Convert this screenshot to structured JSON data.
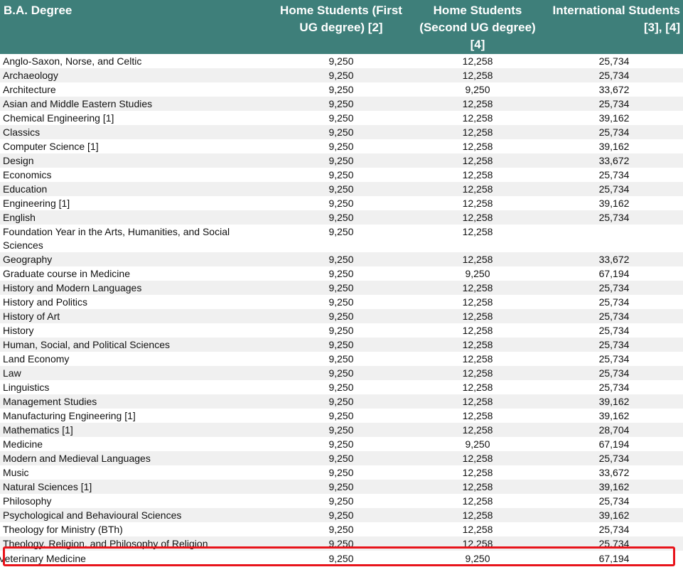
{
  "table": {
    "headers": [
      "B.A. Degree",
      "Home Students (First UG degree) [2]",
      "Home Students (Second UG degree) [4]",
      "International Students [3], [4]"
    ],
    "rows": [
      {
        "name": "Anglo-Saxon, Norse, and Celtic",
        "first": "9,250",
        "second": "12,258",
        "intl": "25,734"
      },
      {
        "name": "Archaeology",
        "first": "9,250",
        "second": "12,258",
        "intl": "25,734"
      },
      {
        "name": "Architecture",
        "first": "9,250",
        "second": "9,250",
        "intl": "33,672"
      },
      {
        "name": "Asian and Middle Eastern Studies",
        "first": "9,250",
        "second": "12,258",
        "intl": "25,734"
      },
      {
        "name": "Chemical Engineering [1]",
        "first": "9,250",
        "second": "12,258",
        "intl": "39,162"
      },
      {
        "name": "Classics",
        "first": "9,250",
        "second": "12,258",
        "intl": "25,734"
      },
      {
        "name": "Computer Science [1]",
        "first": "9,250",
        "second": "12,258",
        "intl": "39,162"
      },
      {
        "name": "Design",
        "first": "9,250",
        "second": "12,258",
        "intl": "33,672"
      },
      {
        "name": "Economics",
        "first": "9,250",
        "second": "12,258",
        "intl": "25,734"
      },
      {
        "name": "Education",
        "first": "9,250",
        "second": "12,258",
        "intl": "25,734"
      },
      {
        "name": "Engineering [1]",
        "first": "9,250",
        "second": "12,258",
        "intl": "39,162"
      },
      {
        "name": "English",
        "first": "9,250",
        "second": "12,258",
        "intl": "25,734"
      },
      {
        "name": "Foundation Year in the Arts, Humanities, and Social Sciences",
        "first": "9,250",
        "second": "12,258",
        "intl": ""
      },
      {
        "name": "Geography",
        "first": "9,250",
        "second": "12,258",
        "intl": "33,672"
      },
      {
        "name": "Graduate course in Medicine",
        "first": "9,250",
        "second": "9,250",
        "intl": "67,194"
      },
      {
        "name": "History and Modern Languages",
        "first": "9,250",
        "second": "12,258",
        "intl": "25,734"
      },
      {
        "name": "History and Politics",
        "first": "9,250",
        "second": "12,258",
        "intl": "25,734"
      },
      {
        "name": "History of Art",
        "first": "9,250",
        "second": "12,258",
        "intl": "25,734"
      },
      {
        "name": "History",
        "first": "9,250",
        "second": "12,258",
        "intl": "25,734"
      },
      {
        "name": "Human, Social, and Political Sciences",
        "first": "9,250",
        "second": "12,258",
        "intl": "25,734"
      },
      {
        "name": "Land Economy",
        "first": "9,250",
        "second": "12,258",
        "intl": "25,734"
      },
      {
        "name": "Law",
        "first": "9,250",
        "second": "12,258",
        "intl": "25,734"
      },
      {
        "name": "Linguistics",
        "first": "9,250",
        "second": "12,258",
        "intl": "25,734"
      },
      {
        "name": "Management Studies",
        "first": "9,250",
        "second": "12,258",
        "intl": "39,162"
      },
      {
        "name": "Manufacturing Engineering [1]",
        "first": "9,250",
        "second": "12,258",
        "intl": "39,162"
      },
      {
        "name": "Mathematics [1]",
        "first": "9,250",
        "second": "12,258",
        "intl": "28,704"
      },
      {
        "name": "Medicine",
        "first": "9,250",
        "second": "9,250",
        "intl": "67,194"
      },
      {
        "name": "Modern and Medieval Languages",
        "first": "9,250",
        "second": "12,258",
        "intl": "25,734"
      },
      {
        "name": "Music",
        "first": "9,250",
        "second": "12,258",
        "intl": "33,672"
      },
      {
        "name": "Natural Sciences [1]",
        "first": "9,250",
        "second": "12,258",
        "intl": "39,162"
      },
      {
        "name": "Philosophy",
        "first": "9,250",
        "second": "12,258",
        "intl": "25,734"
      },
      {
        "name": "Psychological and Behavioural Sciences",
        "first": "9,250",
        "second": "12,258",
        "intl": "39,162"
      },
      {
        "name": "Theology for Ministry (BTh)",
        "first": "9,250",
        "second": "12,258",
        "intl": "25,734"
      },
      {
        "name": "Theology, Religion, and Philosophy of Religion",
        "first": "9,250",
        "second": "12,258",
        "intl": "25,734"
      },
      {
        "name": "Veterinary Medicine",
        "first": "9,250",
        "second": "9,250",
        "intl": "67,194"
      }
    ]
  },
  "highlight_color": "#e8141b",
  "header_color": "#3e7f7a"
}
